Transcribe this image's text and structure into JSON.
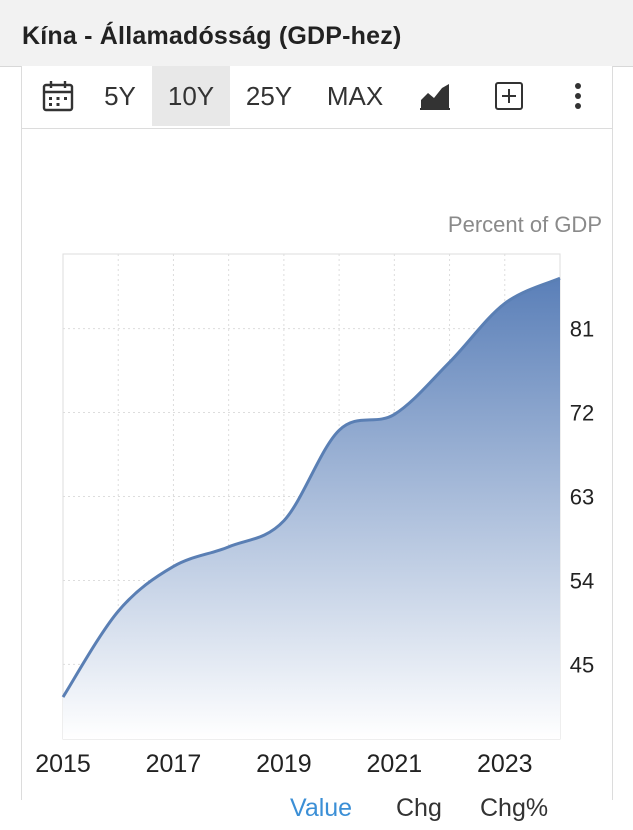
{
  "header": {
    "title": "Kína - Államadósság (GDP-hez)"
  },
  "toolbar": {
    "calendar_icon": "calendar-icon",
    "ranges": [
      "5Y",
      "10Y",
      "25Y",
      "MAX"
    ],
    "active_range": "10Y",
    "chart_type_icon": "area-chart-icon",
    "add_icon": "plus-box-icon",
    "more_icon": "more-vertical-icon"
  },
  "chart_data": {
    "type": "area",
    "unit_label": "Percent of GDP",
    "x": [
      2015,
      2016,
      2017,
      2018,
      2019,
      2020,
      2021,
      2022,
      2023,
      2024
    ],
    "values": [
      41.5,
      50.7,
      55.5,
      57.6,
      60.4,
      70.1,
      71.8,
      77.4,
      83.7,
      86.4
    ],
    "x_ticks": [
      "2015",
      "2017",
      "2019",
      "2021",
      "2023"
    ],
    "y_ticks": [
      45,
      54,
      63,
      72,
      81
    ],
    "ylim": [
      37,
      89
    ],
    "xlim": [
      2015,
      2024
    ],
    "y_axis_position": "right",
    "grid": true,
    "colors": {
      "line": "#5a7fb4",
      "fill_top": "#5a7fb8",
      "fill_bottom": "#ffffff",
      "grid": "#dddddd"
    }
  },
  "tabs": {
    "items": [
      "Value",
      "Chg",
      "Chg%"
    ],
    "active": "Value",
    "active_color": "#3b8fd6"
  }
}
